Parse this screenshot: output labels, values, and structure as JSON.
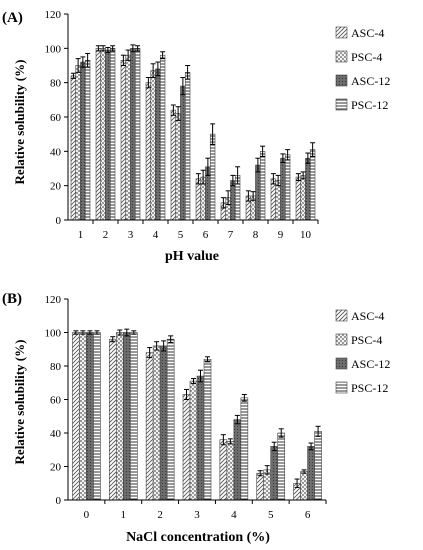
{
  "chart_data": [
    {
      "type": "bar",
      "panel_label": "(A)",
      "xlabel": "pH value",
      "ylabel": "Relative solubility (%)",
      "categories": [
        "1",
        "2",
        "3",
        "4",
        "5",
        "6",
        "7",
        "8",
        "9",
        "10"
      ],
      "ylim": [
        0,
        120
      ],
      "yticks": [
        0,
        20,
        40,
        60,
        80,
        100,
        120
      ],
      "legend_position": "right",
      "series": [
        {
          "name": "ASC-4",
          "pattern": "diag",
          "values": [
            84,
            100,
            93,
            80,
            64,
            24,
            10,
            14,
            24,
            25
          ],
          "errors": [
            1.5,
            1.5,
            3,
            3,
            3,
            3,
            3,
            3,
            3,
            2
          ]
        },
        {
          "name": "PSC-4",
          "pattern": "check",
          "values": [
            90,
            100,
            96,
            87,
            62,
            25,
            13,
            14,
            23,
            26
          ],
          "errors": [
            4,
            1.5,
            3,
            4,
            4,
            4,
            4,
            2.5,
            3,
            2
          ]
        },
        {
          "name": "ASC-12",
          "pattern": "dark",
          "values": [
            92,
            99,
            100,
            88,
            78,
            31,
            23,
            32,
            36,
            36
          ],
          "errors": [
            3,
            1.5,
            2,
            4,
            5,
            5,
            3,
            4,
            2.5,
            3
          ]
        },
        {
          "name": "PSC-12",
          "pattern": "hline",
          "values": [
            93,
            100,
            100,
            96,
            86,
            50,
            26,
            40,
            38,
            41
          ],
          "errors": [
            4,
            1.5,
            1.5,
            2,
            4,
            6,
            5,
            3,
            3,
            4
          ]
        }
      ]
    },
    {
      "type": "bar",
      "panel_label": "(B)",
      "xlabel": "NaCl concentration (%)",
      "ylabel": "Relative solubility (%)",
      "categories": [
        "0",
        "1",
        "2",
        "3",
        "4",
        "5",
        "6"
      ],
      "ylim": [
        0,
        120
      ],
      "yticks": [
        0,
        20,
        40,
        60,
        80,
        100,
        120
      ],
      "legend_position": "right",
      "series": [
        {
          "name": "ASC-4",
          "pattern": "diag",
          "values": [
            100,
            96,
            88,
            63,
            36,
            16,
            10
          ],
          "errors": [
            1,
            1.5,
            3,
            3,
            3,
            1.5,
            2.5
          ]
        },
        {
          "name": "PSC-4",
          "pattern": "check",
          "values": [
            100,
            100,
            92,
            71,
            35,
            18,
            17
          ],
          "errors": [
            1,
            1.5,
            2.5,
            1.5,
            1.5,
            2.5,
            1
          ]
        },
        {
          "name": "ASC-12",
          "pattern": "dark",
          "values": [
            100,
            100,
            92,
            74,
            48,
            32,
            32
          ],
          "errors": [
            1,
            2,
            3,
            3.5,
            2.5,
            2.5,
            2
          ]
        },
        {
          "name": "PSC-12",
          "pattern": "hline",
          "values": [
            100,
            100,
            96,
            84,
            61,
            40,
            41
          ],
          "errors": [
            1,
            1,
            2,
            1.5,
            2,
            2.5,
            3
          ]
        }
      ]
    }
  ]
}
